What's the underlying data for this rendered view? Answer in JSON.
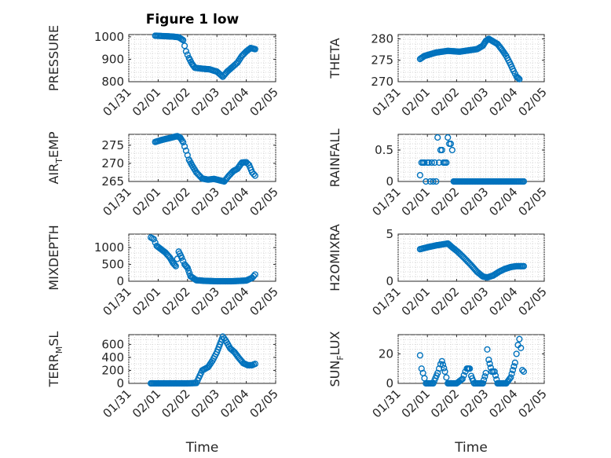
{
  "title": "Figure 1 low",
  "colors": {
    "marker": "#0072bd",
    "axis": "#262626",
    "grid": "#d6d6d6"
  },
  "chart_data": [
    {
      "type": "scatter",
      "name": "PRESSURE",
      "ylabel": "PRESSURE",
      "yticks": [
        "1000",
        "900",
        "800"
      ],
      "ytick_values": [
        1000,
        900,
        800
      ],
      "ylim": [
        800,
        1010
      ],
      "xticks": [
        "01/31",
        "02/01",
        "02/02",
        "02/03",
        "02/04",
        "02/05"
      ],
      "xlim": [
        0,
        5
      ],
      "xlabel": "",
      "grid": true,
      "points": [
        [
          0.9,
          1005
        ],
        [
          1.2,
          1003
        ],
        [
          1.5,
          1001
        ],
        [
          1.7,
          998
        ],
        [
          1.85,
          985
        ],
        [
          1.9,
          960
        ],
        [
          1.95,
          935
        ],
        [
          2.05,
          905
        ],
        [
          2.15,
          880
        ],
        [
          2.25,
          862
        ],
        [
          2.5,
          858
        ],
        [
          2.75,
          855
        ],
        [
          3.0,
          845
        ],
        [
          3.2,
          822
        ],
        [
          3.35,
          845
        ],
        [
          3.5,
          862
        ],
        [
          3.7,
          885
        ],
        [
          3.85,
          915
        ],
        [
          4.0,
          935
        ],
        [
          4.15,
          950
        ],
        [
          4.3,
          945
        ]
      ]
    },
    {
      "type": "scatter",
      "name": "THETA",
      "ylabel": "THETA",
      "yticks": [
        "280",
        "275",
        "270"
      ],
      "ytick_values": [
        280,
        275,
        270
      ],
      "ylim": [
        270,
        281
      ],
      "xticks": [
        "01/31",
        "02/01",
        "02/02",
        "02/03",
        "02/04",
        "02/05"
      ],
      "xlim": [
        0,
        5
      ],
      "xlabel": "",
      "grid": true,
      "points": [
        [
          0.75,
          275.3
        ],
        [
          0.9,
          276.0
        ],
        [
          1.1,
          276.4
        ],
        [
          1.3,
          276.8
        ],
        [
          1.5,
          277.0
        ],
        [
          1.7,
          277.2
        ],
        [
          1.9,
          277.1
        ],
        [
          2.1,
          277.0
        ],
        [
          2.3,
          277.2
        ],
        [
          2.5,
          277.4
        ],
        [
          2.7,
          277.6
        ],
        [
          2.9,
          278.4
        ],
        [
          3.0,
          279.5
        ],
        [
          3.1,
          280.0
        ],
        [
          3.25,
          279.4
        ],
        [
          3.4,
          278.8
        ],
        [
          3.55,
          277.5
        ],
        [
          3.7,
          276.0
        ],
        [
          3.85,
          274.0
        ],
        [
          3.95,
          272.5
        ],
        [
          4.05,
          271.2
        ],
        [
          4.15,
          270.6
        ]
      ]
    },
    {
      "type": "scatter",
      "name": "AIR_TEMP",
      "ylabel": "AIR_TEMP",
      "yticks": [
        "275",
        "270",
        "265"
      ],
      "ytick_values": [
        275,
        270,
        265
      ],
      "ylim": [
        265,
        278
      ],
      "xticks": [
        "01/31",
        "02/01",
        "02/02",
        "02/03",
        "02/04",
        "02/05"
      ],
      "xlim": [
        0,
        5
      ],
      "xlabel": "",
      "grid": true,
      "points": [
        [
          0.9,
          275.9
        ],
        [
          1.1,
          276.4
        ],
        [
          1.3,
          276.8
        ],
        [
          1.5,
          277.2
        ],
        [
          1.65,
          277.5
        ],
        [
          1.75,
          277.1
        ],
        [
          1.85,
          275.8
        ],
        [
          1.95,
          273.5
        ],
        [
          2.05,
          271.0
        ],
        [
          2.15,
          269.5
        ],
        [
          2.3,
          267.5
        ],
        [
          2.5,
          265.8
        ],
        [
          2.7,
          265.5
        ],
        [
          2.9,
          265.7
        ],
        [
          3.1,
          265.3
        ],
        [
          3.25,
          265.0
        ],
        [
          3.4,
          266.5
        ],
        [
          3.55,
          267.8
        ],
        [
          3.7,
          268.5
        ],
        [
          3.85,
          270.2
        ],
        [
          4.0,
          270.3
        ],
        [
          4.1,
          269.5
        ],
        [
          4.2,
          267.5
        ],
        [
          4.3,
          266.6
        ]
      ]
    },
    {
      "type": "scatter",
      "name": "RAINFALL",
      "ylabel": "RAINFALL",
      "yticks": [
        "0.5",
        "0"
      ],
      "ytick_values": [
        0.5,
        0
      ],
      "ylim": [
        0,
        0.75
      ],
      "xticks": [
        "01/31",
        "02/01",
        "02/02",
        "02/03",
        "02/04",
        "02/05"
      ],
      "xlim": [
        0,
        5
      ],
      "xlabel": "",
      "grid": true,
      "points": [
        [
          0.75,
          0.1
        ],
        [
          0.8,
          0.3
        ],
        [
          0.85,
          0.3
        ],
        [
          0.9,
          0.3
        ],
        [
          0.95,
          0.0
        ],
        [
          1.0,
          0.3
        ],
        [
          1.05,
          0.3
        ],
        [
          1.1,
          0.0
        ],
        [
          1.15,
          0.3
        ],
        [
          1.2,
          0.0
        ],
        [
          1.25,
          0.3
        ],
        [
          1.3,
          0.0
        ],
        [
          1.35,
          0.7
        ],
        [
          1.4,
          0.3
        ],
        [
          1.45,
          0.5
        ],
        [
          1.5,
          0.5
        ],
        [
          1.55,
          0.3
        ],
        [
          1.6,
          0.3
        ],
        [
          1.65,
          0.3
        ],
        [
          1.7,
          0.7
        ],
        [
          1.75,
          0.6
        ],
        [
          1.8,
          0.6
        ],
        [
          1.85,
          0.5
        ],
        [
          1.9,
          0.0
        ],
        [
          2.0,
          0.0
        ],
        [
          2.5,
          0.0
        ],
        [
          3.0,
          0.0
        ],
        [
          3.5,
          0.0
        ],
        [
          4.0,
          0.0
        ],
        [
          4.3,
          0.0
        ]
      ]
    },
    {
      "type": "scatter",
      "name": "MIXDEPTH",
      "ylabel": "MIXDEPTH",
      "yticks": [
        "1000",
        "500",
        "0"
      ],
      "ytick_values": [
        1000,
        500,
        0
      ],
      "ylim": [
        0,
        1400
      ],
      "xticks": [
        "01/31",
        "02/01",
        "02/02",
        "02/03",
        "02/04",
        "02/05"
      ],
      "xlim": [
        0,
        5
      ],
      "xlabel": "",
      "grid": true,
      "points": [
        [
          0.75,
          1300
        ],
        [
          0.85,
          1250
        ],
        [
          0.95,
          1050
        ],
        [
          1.1,
          950
        ],
        [
          1.25,
          850
        ],
        [
          1.4,
          700
        ],
        [
          1.5,
          550
        ],
        [
          1.6,
          450
        ],
        [
          1.7,
          880
        ],
        [
          1.8,
          700
        ],
        [
          1.9,
          500
        ],
        [
          2.0,
          400
        ],
        [
          2.1,
          150
        ],
        [
          2.3,
          30
        ],
        [
          2.6,
          10
        ],
        [
          3.0,
          0
        ],
        [
          3.5,
          0
        ],
        [
          4.0,
          20
        ],
        [
          4.2,
          100
        ],
        [
          4.3,
          200
        ]
      ]
    },
    {
      "type": "scatter",
      "name": "H2OMIXRA",
      "ylabel": "H2OMIXRA",
      "yticks": [
        "5",
        "0"
      ],
      "ytick_values": [
        5,
        0
      ],
      "ylim": [
        0,
        5
      ],
      "xticks": [
        "01/31",
        "02/01",
        "02/02",
        "02/03",
        "02/04",
        "02/05"
      ],
      "xlim": [
        0,
        5
      ],
      "xlabel": "",
      "grid": true,
      "points": [
        [
          0.75,
          3.4
        ],
        [
          1.0,
          3.6
        ],
        [
          1.3,
          3.8
        ],
        [
          1.5,
          3.9
        ],
        [
          1.7,
          4.0
        ],
        [
          1.85,
          3.6
        ],
        [
          2.05,
          3.1
        ],
        [
          2.25,
          2.5
        ],
        [
          2.5,
          1.7
        ],
        [
          2.7,
          1.0
        ],
        [
          2.9,
          0.5
        ],
        [
          3.05,
          0.4
        ],
        [
          3.25,
          0.6
        ],
        [
          3.45,
          1.0
        ],
        [
          3.65,
          1.3
        ],
        [
          3.85,
          1.5
        ],
        [
          4.05,
          1.6
        ],
        [
          4.3,
          1.6
        ]
      ]
    },
    {
      "type": "scatter",
      "name": "TERR_MSL",
      "ylabel": "TERR_MSL",
      "yticks": [
        "600",
        "400",
        "200",
        "0"
      ],
      "ytick_values": [
        600,
        400,
        200,
        0
      ],
      "ylim": [
        0,
        750
      ],
      "xticks": [
        "01/31",
        "02/01",
        "02/02",
        "02/03",
        "02/04",
        "02/05"
      ],
      "xlim": [
        0,
        5
      ],
      "xlabel": "Time",
      "grid": true,
      "points": [
        [
          0.75,
          0
        ],
        [
          1.0,
          0
        ],
        [
          1.5,
          0
        ],
        [
          2.0,
          0
        ],
        [
          2.3,
          5
        ],
        [
          2.5,
          200
        ],
        [
          2.7,
          250
        ],
        [
          2.85,
          350
        ],
        [
          3.0,
          480
        ],
        [
          3.1,
          600
        ],
        [
          3.2,
          720
        ],
        [
          3.3,
          660
        ],
        [
          3.45,
          540
        ],
        [
          3.6,
          480
        ],
        [
          3.75,
          390
        ],
        [
          3.9,
          310
        ],
        [
          4.05,
          280
        ],
        [
          4.2,
          280
        ],
        [
          4.3,
          300
        ]
      ]
    },
    {
      "type": "scatter",
      "name": "SUN_FLUX",
      "ylabel": "SUN_FLUX",
      "yticks": [
        "20",
        "0"
      ],
      "ytick_values": [
        20,
        0
      ],
      "ylim": [
        0,
        33
      ],
      "xticks": [
        "01/31",
        "02/01",
        "02/02",
        "02/03",
        "02/04",
        "02/05"
      ],
      "xlim": [
        0,
        5
      ],
      "xlabel": "Time",
      "grid": true,
      "points": [
        [
          0.75,
          19
        ],
        [
          0.8,
          10
        ],
        [
          0.85,
          7
        ],
        [
          0.95,
          0
        ],
        [
          1.2,
          0
        ],
        [
          1.35,
          7
        ],
        [
          1.45,
          13
        ],
        [
          1.5,
          15
        ],
        [
          1.6,
          8
        ],
        [
          1.7,
          0
        ],
        [
          2.0,
          0
        ],
        [
          2.2,
          3
        ],
        [
          2.3,
          8
        ],
        [
          2.35,
          10
        ],
        [
          2.45,
          10
        ],
        [
          2.5,
          5
        ],
        [
          2.6,
          0
        ],
        [
          2.9,
          0
        ],
        [
          3.0,
          7
        ],
        [
          3.05,
          23
        ],
        [
          3.1,
          16
        ],
        [
          3.2,
          8
        ],
        [
          3.3,
          8
        ],
        [
          3.4,
          0
        ],
        [
          3.7,
          0
        ],
        [
          3.85,
          4
        ],
        [
          4.0,
          14
        ],
        [
          4.1,
          26
        ],
        [
          4.15,
          30
        ],
        [
          4.2,
          24
        ],
        [
          4.25,
          9
        ],
        [
          4.3,
          8
        ]
      ]
    }
  ]
}
